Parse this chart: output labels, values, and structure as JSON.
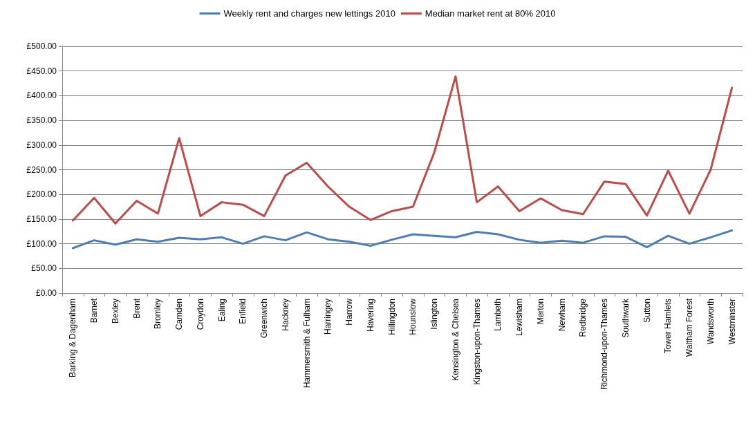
{
  "chart_data": {
    "type": "line",
    "categories": [
      "Barking & Dagenham",
      "Barnet",
      "Bexley",
      "Brent",
      "Bromley",
      "Camden",
      "Croydon",
      "Ealing",
      "Enfield",
      "Greenwich",
      "Hackney",
      "Hammersmith & Fulham",
      "Harringey",
      "Harrow",
      "Havering",
      "Hillingdon",
      "Hounslow",
      "Islington",
      "Kensington & Chelsea",
      "Kingston-upon-Thames",
      "Lambeth",
      "Lewisham",
      "Merton",
      "Newham",
      "Redbridge",
      "Richmond-upon-Thames",
      "Southwark",
      "Sutton",
      "Tower Hamlets",
      "Waltham Forest",
      "Wandsworth",
      "Westminster"
    ],
    "series": [
      {
        "name": "Weekly rent and charges new lettings 2010",
        "color": "#4a7ebb",
        "values": [
          91,
          107,
          98,
          109,
          104,
          112,
          109,
          113,
          100,
          115,
          107,
          123,
          109,
          104,
          96,
          108,
          119,
          116,
          113,
          124,
          119,
          108,
          102,
          106,
          102,
          115,
          114,
          93,
          116,
          100,
          113,
          127
        ]
      },
      {
        "name": "Median market rent at 80% 2010",
        "color": "#be4b48",
        "values": [
          147,
          193,
          141,
          187,
          161,
          314,
          156,
          184,
          179,
          156,
          238,
          264,
          216,
          175,
          148,
          166,
          175,
          285,
          439,
          184,
          216,
          166,
          192,
          168,
          160,
          226,
          221,
          157,
          248,
          161,
          250,
          416
        ]
      }
    ],
    "ylim": [
      0,
      500
    ],
    "yticks": [
      {
        "value": 0,
        "label": "£0.00"
      },
      {
        "value": 50,
        "label": "£50.00"
      },
      {
        "value": 100,
        "label": "£100.00"
      },
      {
        "value": 150,
        "label": "£150.00"
      },
      {
        "value": 200,
        "label": "£200.00"
      },
      {
        "value": 250,
        "label": "£250.00"
      },
      {
        "value": 300,
        "label": "£300.00"
      },
      {
        "value": 350,
        "label": "£350.00"
      },
      {
        "value": 400,
        "label": "£400.00"
      },
      {
        "value": 450,
        "label": "£450.00"
      },
      {
        "value": 500,
        "label": "£500.00"
      }
    ],
    "grid": "y",
    "legend": "top",
    "marker": "none",
    "line_style": "solid"
  }
}
